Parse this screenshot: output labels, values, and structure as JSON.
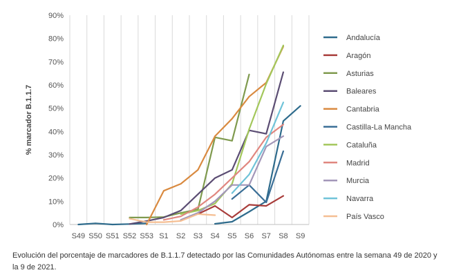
{
  "caption": "Evolución del porcentaje de marcadores de B.1.1.7 detectado por las Comunidades Autónomas entre la semana 49 de 2020 y la 9 de 2021.",
  "chart_data": {
    "type": "line",
    "title": "",
    "xlabel": "",
    "ylabel": "% marcador B.1.1.7",
    "ylim": [
      0,
      90
    ],
    "yticks": [
      "0%",
      "10%",
      "20%",
      "30%",
      "40%",
      "50%",
      "60%",
      "70%",
      "80%",
      "90%"
    ],
    "categories": [
      "S49",
      "S50",
      "S51",
      "S52",
      "S53",
      "S1",
      "S2",
      "S3",
      "S4",
      "S5",
      "S6",
      "S7",
      "S8",
      "S9"
    ],
    "grid": "vertical",
    "legend": "right",
    "series": [
      {
        "name": "Andalucía",
        "color": "#2e6b8c",
        "values": [
          0,
          0.5,
          0,
          0.2,
          0.5,
          null,
          null,
          null,
          0.3,
          1.2,
          5.5,
          10,
          44.5,
          51
        ]
      },
      {
        "name": "Aragón",
        "color": "#a83c3a",
        "values": [
          null,
          null,
          null,
          null,
          null,
          null,
          null,
          4.5,
          8,
          3,
          8.5,
          8,
          12.3,
          null
        ]
      },
      {
        "name": "Asturias",
        "color": "#7f9a4e",
        "values": [
          null,
          null,
          null,
          3,
          3,
          3.2,
          5,
          6.5,
          37.5,
          36,
          64.5,
          null,
          null,
          null
        ]
      },
      {
        "name": "Baleares",
        "color": "#5b4d73",
        "values": [
          null,
          null,
          null,
          0.2,
          1.5,
          3,
          6,
          13,
          20,
          23.5,
          40.5,
          39,
          65.5,
          null
        ]
      },
      {
        "name": "Cantabria",
        "color": "#d98a40",
        "values": [
          null,
          null,
          null,
          null,
          0,
          14.5,
          17.5,
          23.5,
          38,
          45.5,
          55,
          61,
          76.5,
          null
        ]
      },
      {
        "name": "Castilla-La Mancha",
        "color": "#3a6e96",
        "values": [
          null,
          null,
          null,
          null,
          null,
          null,
          null,
          null,
          null,
          11,
          17,
          9.5,
          31.5,
          null
        ]
      },
      {
        "name": "Cataluña",
        "color": "#a3c75b",
        "values": [
          null,
          null,
          null,
          null,
          null,
          null,
          4.5,
          6,
          9,
          17.5,
          41,
          60.5,
          77,
          null
        ]
      },
      {
        "name": "Madrid",
        "color": "#e0867f",
        "values": [
          null,
          null,
          null,
          null,
          null,
          2,
          3.5,
          7.5,
          13,
          20,
          27,
          37.5,
          43,
          null
        ]
      },
      {
        "name": "Murcia",
        "color": "#a296b8",
        "values": [
          null,
          null,
          null,
          null,
          null,
          null,
          2,
          5,
          10,
          17,
          17,
          33.5,
          38,
          null
        ]
      },
      {
        "name": "Navarra",
        "color": "#6fc3d8",
        "values": [
          null,
          null,
          null,
          null,
          null,
          null,
          null,
          null,
          null,
          13.5,
          21.5,
          35,
          52.5,
          null
        ]
      },
      {
        "name": "País Vasco",
        "color": "#f5be92",
        "values": [
          null,
          null,
          null,
          2.5,
          1,
          1,
          1.5,
          4.5,
          4,
          null,
          null,
          null,
          null,
          null
        ]
      }
    ]
  }
}
